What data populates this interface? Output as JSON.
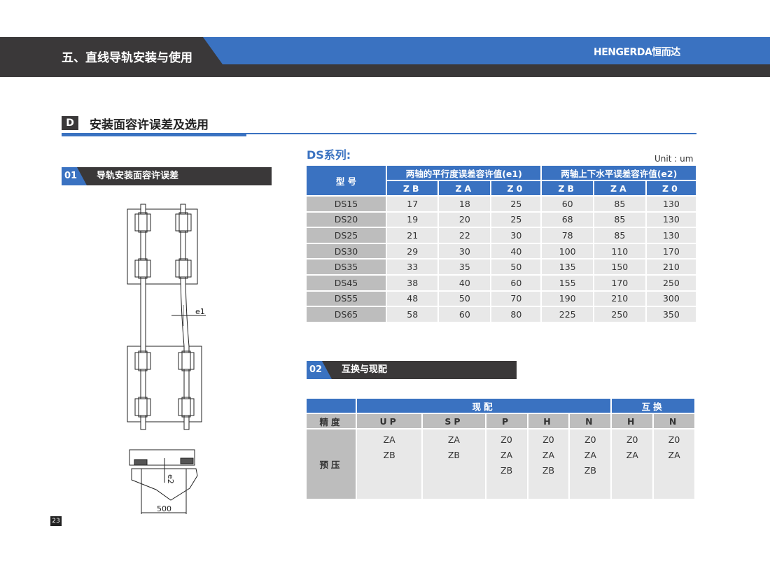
{
  "header": {
    "title": "五、直线导轨安装与使用",
    "logo": "HENGERDA恒而达"
  },
  "section": {
    "letter": "D",
    "title": "安装面容许误差及选用"
  },
  "sub1": {
    "num": "01",
    "title": "导轨安装面容许误差"
  },
  "figure": {
    "e1": "e1",
    "e2": "e2",
    "dim": "500"
  },
  "ds": {
    "title": "DS系列:",
    "unit": "Unit : um",
    "col_model": "型 号",
    "group_e1": "两轴的平行度误差容许值(e1)",
    "group_e2": "两轴上下水平误差容许值(e2)",
    "subcols": [
      "ZB",
      "ZA",
      "Z0",
      "ZB",
      "ZA",
      "Z0"
    ],
    "rows": [
      [
        "DS15",
        "17",
        "18",
        "25",
        "60",
        "85",
        "130"
      ],
      [
        "DS20",
        "19",
        "20",
        "25",
        "68",
        "85",
        "130"
      ],
      [
        "DS25",
        "21",
        "22",
        "30",
        "78",
        "85",
        "130"
      ],
      [
        "DS30",
        "29",
        "30",
        "40",
        "100",
        "110",
        "170"
      ],
      [
        "DS35",
        "33",
        "35",
        "50",
        "135",
        "150",
        "210"
      ],
      [
        "DS45",
        "38",
        "40",
        "60",
        "155",
        "170",
        "250"
      ],
      [
        "DS55",
        "48",
        "50",
        "70",
        "190",
        "210",
        "300"
      ],
      [
        "DS65",
        "58",
        "60",
        "80",
        "225",
        "250",
        "350"
      ]
    ]
  },
  "sub2": {
    "num": "02",
    "title": "互换与现配"
  },
  "t2": {
    "group_match": "现配",
    "group_inter": "互换",
    "precision_label": "精度",
    "preload_label": "预压",
    "precisions": [
      "UP",
      "SP",
      "P",
      "H",
      "N",
      "H",
      "N"
    ],
    "preloads": [
      "ZA\nZB",
      "ZA\nZB",
      "Z0\nZA\nZB",
      "Z0\nZA\nZB",
      "Z0\nZA\nZB",
      "Z0\nZA",
      "Z0\nZA"
    ]
  },
  "page_number": "23"
}
